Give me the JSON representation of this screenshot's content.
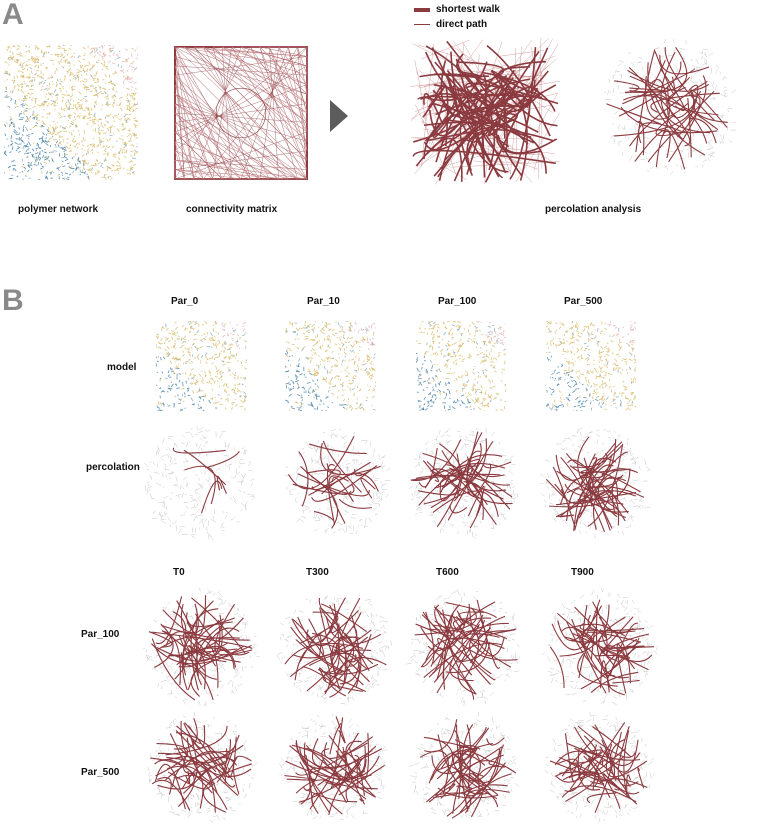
{
  "panels": {
    "a": {
      "letter": "A",
      "captions": {
        "polymer": "polymer network",
        "matrix": "connectivity matrix",
        "percolation": "percolation analysis"
      },
      "legend": {
        "shortest_walk": "shortest walk",
        "direct_path": "direct path"
      }
    },
    "b": {
      "letter": "B",
      "columns_top": [
        "Par_0",
        "Par_10",
        "Par_100",
        "Par_500"
      ],
      "rows_top": {
        "model": "model",
        "percolation": "percolation"
      },
      "columns_bottom": [
        "T0",
        "T300",
        "T600",
        "T900"
      ],
      "rows_bottom": [
        "Par_100",
        "Par_500"
      ]
    }
  },
  "colors": {
    "network_red": "#8b3a3f",
    "network_light": "#c98b8f",
    "grey_mesh": "#c7c7c7",
    "polymer_blue": "#3f7ea6",
    "polymer_yellow": "#d8b865",
    "polymer_pink": "#e3aeb5",
    "arrow": "#5c5c5c",
    "letter_grey": "#8a8a8a"
  }
}
